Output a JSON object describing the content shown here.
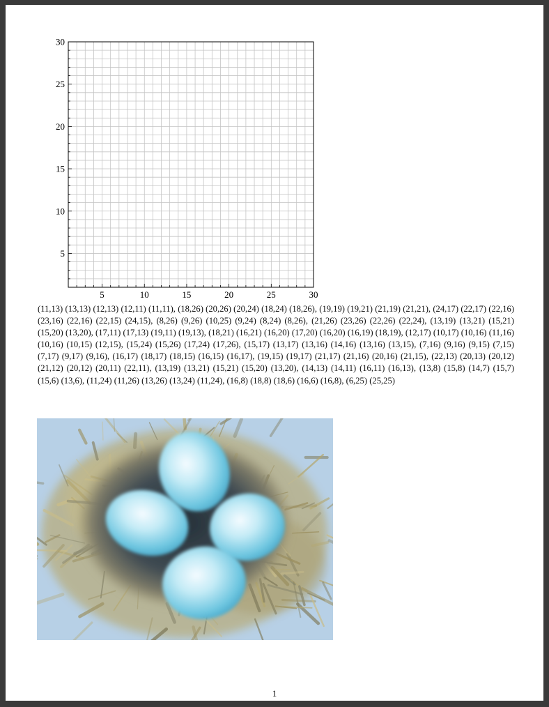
{
  "graph": {
    "x_ticks": [
      "5",
      "10",
      "15",
      "20",
      "25",
      "30"
    ],
    "y_ticks": [
      "30",
      "25",
      "20",
      "15",
      "10",
      "5"
    ],
    "x_range": [
      1,
      30
    ],
    "y_range": [
      1,
      30
    ],
    "grid": "every 1 unit"
  },
  "coordinates_text": "(11,13) (13,13) (12,13) (12,11) (11,11), (18,26) (20,26) (20,24) (18,24) (18,26), (19,19) (19,21) (21,19) (21,21), (24,17) (22,17) (22,16) (23,16) (22,16) (22,15) (24,15), (8,26) (9,26) (10,25) (9,24) (8,24) (8,26), (21,26) (23,26) (22,26) (22,24), (13,19) (13,21) (15,21) (15,20) (13,20), (17,11) (17,13) (19,11) (19,13), (18,21) (16,21) (16,20) (17,20) (16,20) (16,19) (18,19), (12,17) (10,17) (10,16) (11,16) (10,16) (10,15) (12,15), (15,24) (15,26) (17,24) (17,26), (15,17) (13,17) (13,16) (14,16) (13,16) (13,15), (7,16) (9,16) (9,15) (7,15) (7,17) (9,17) (9,16), (16,17) (18,17) (18,15) (16,15) (16,17), (19,15) (19,17) (21,17) (21,16) (20,16) (21,15), (22,13) (20,13) (20,12) (21,12) (20,12) (20,11) (22,11), (13,19) (13,21) (15,21) (15,20) (13,20), (14,13) (14,11) (16,11) (16,13), (13,8) (15,8) (14,7) (15,7) (15,6) (13,6), (11,24) (11,26) (13,26) (13,24) (11,24), (16,8) (18,8) (18,6) (16,6) (16,8), (6,25) (25,25)",
  "illustration": {
    "subject": "watercolor bird nest with four blue eggs",
    "colors": {
      "sky": "#b7d0e6",
      "straw": "#b3a87a",
      "nest_dark": "#3e4a52",
      "egg": "#7ccbe0"
    }
  },
  "page_number": "1"
}
